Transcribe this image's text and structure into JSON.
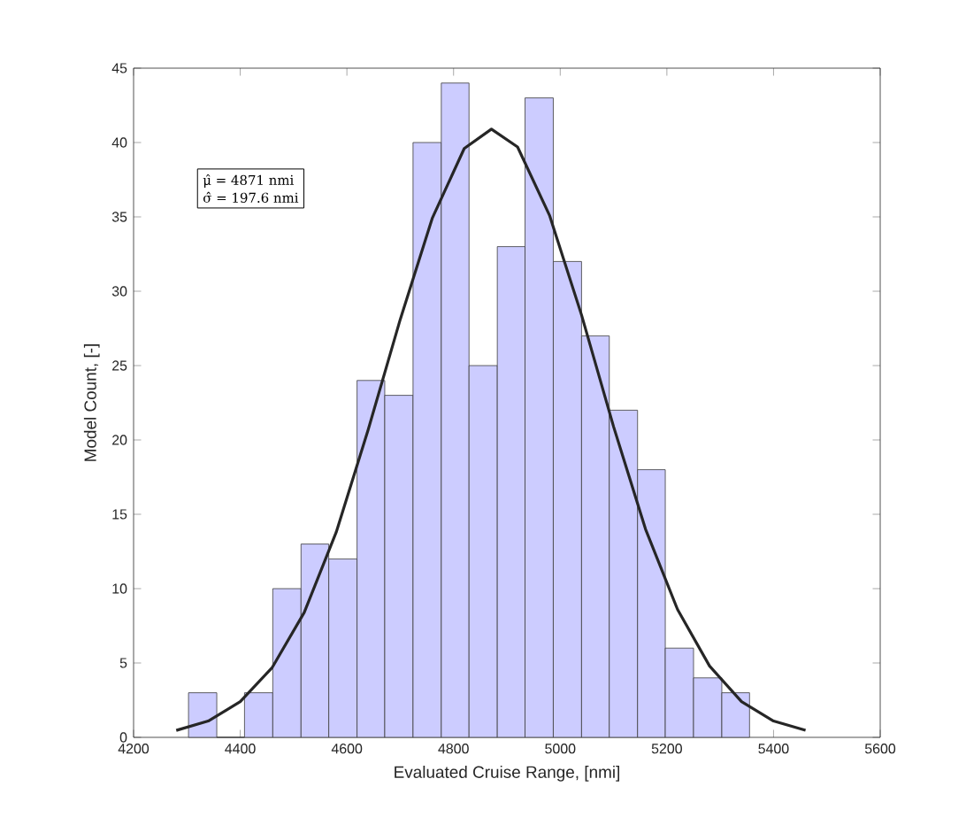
{
  "chart_data": {
    "type": "histogram",
    "xlabel": "Evaluated Cruise Range, [nmi]",
    "ylabel": "Model Count, [-]",
    "bins": [
      4303,
      4356,
      4408,
      4461,
      4514,
      4566,
      4619,
      4671,
      4724,
      4777,
      4829,
      4882,
      4934,
      4987,
      5040,
      5092,
      5145,
      5197,
      5250,
      5303,
      5355
    ],
    "values": [
      3,
      0,
      3,
      10,
      13,
      12,
      24,
      23,
      40,
      44,
      25,
      33,
      43,
      32,
      27,
      22,
      18,
      6,
      4,
      3
    ],
    "color": "#ccccff",
    "series": [
      {
        "type": "line",
        "color": "#262626",
        "x": [
          4280,
          4340,
          4400,
          4460,
          4520,
          4580,
          4640,
          4700,
          4760,
          4820,
          4871,
          4920,
          4980,
          5040,
          5100,
          5160,
          5220,
          5280,
          5340,
          5400,
          5460
        ],
        "values": [
          0.47,
          1.1,
          2.4,
          4.7,
          8.4,
          13.8,
          20.7,
          28.1,
          34.9,
          39.6,
          40.9,
          39.7,
          35.1,
          28.4,
          20.9,
          14.0,
          8.6,
          4.8,
          2.4,
          1.1,
          0.48
        ]
      }
    ],
    "xlim": [
      4200,
      5600
    ],
    "ylim": [
      0,
      45
    ],
    "xticks": [
      4200,
      4400,
      4600,
      4800,
      5000,
      5200,
      5400,
      5600
    ],
    "yticks": [
      0,
      5,
      10,
      15,
      20,
      25,
      30,
      35,
      40,
      45
    ],
    "annotations": [
      "μ̂ = 4871 nmi",
      "σ̂ = 197.6 nmi"
    ]
  }
}
